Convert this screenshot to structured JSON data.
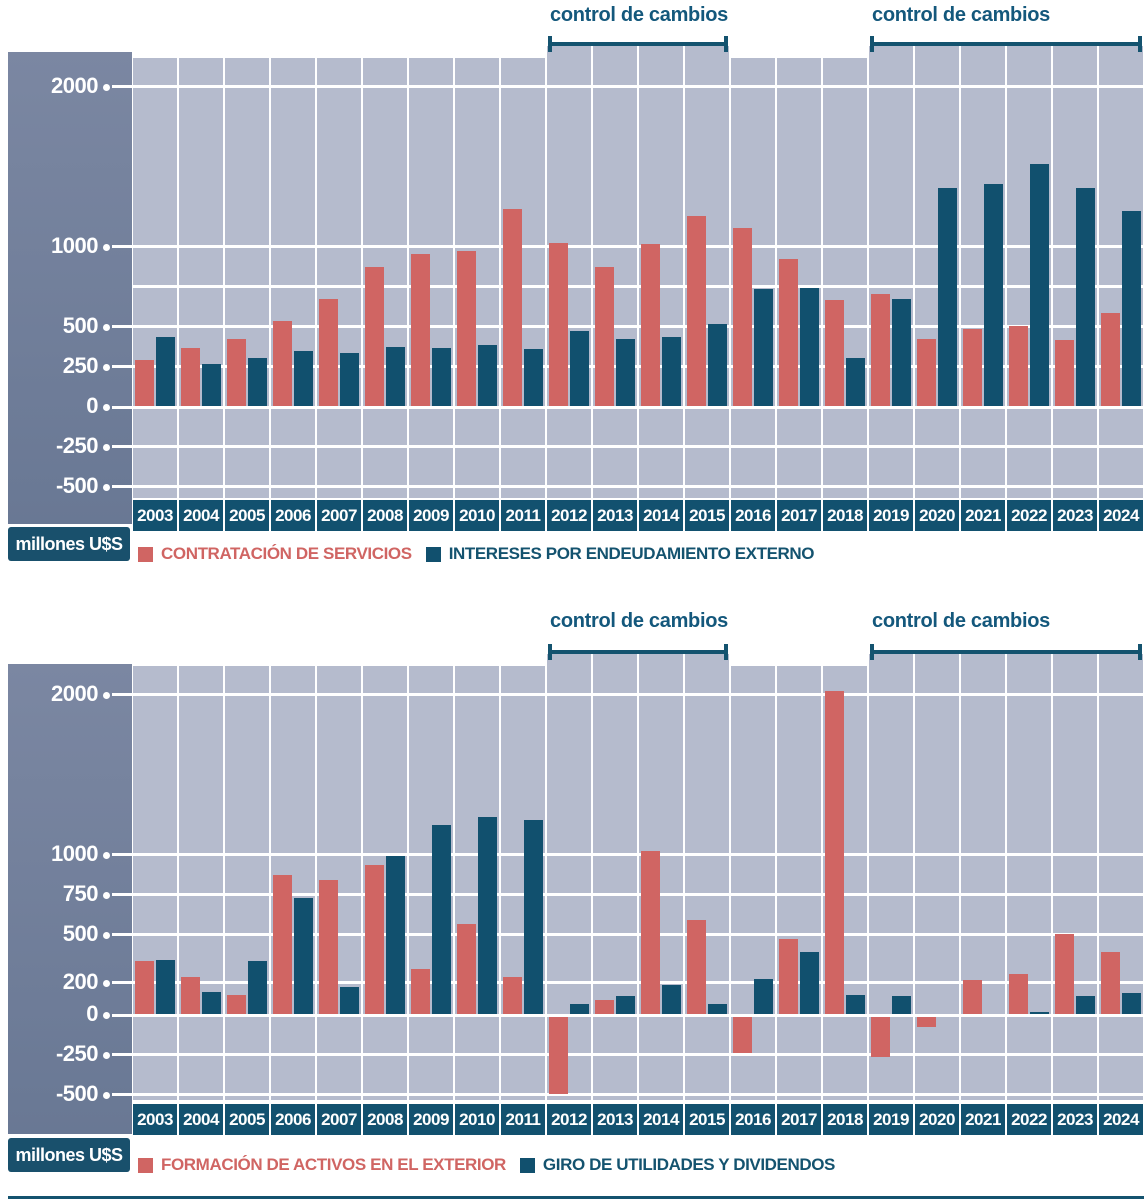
{
  "palette": {
    "series_red": "#d06563",
    "series_blue": "#11506e",
    "plot_column_bg": "#b5bbcd",
    "axis_panel_top": "#7b87a2",
    "axis_panel_bottom": "#697894",
    "year_band_bg": "#12516f",
    "control_text": "#14587c",
    "gridline": "#ffffff"
  },
  "footer": {
    "rule_color": "#14536f"
  },
  "chart_data": [
    {
      "type": "bar",
      "unit_label": "millones U$S",
      "categories": [
        "2003",
        "2004",
        "2005",
        "2006",
        "2007",
        "2008",
        "2009",
        "2010",
        "2011",
        "2012",
        "2013",
        "2014",
        "2015",
        "2016",
        "2017",
        "2018",
        "2019",
        "2020",
        "2021",
        "2022",
        "2023",
        "2024"
      ],
      "series": [
        {
          "key": "contratacion-de-servicios",
          "name": "CONTRATACIÓN DE SERVICIOS",
          "color": "#d06563",
          "values": [
            290,
            360,
            420,
            530,
            670,
            870,
            950,
            970,
            1230,
            1020,
            870,
            1010,
            1190,
            1110,
            920,
            660,
            700,
            420,
            480,
            500,
            415,
            580
          ]
        },
        {
          "key": "intereses-por-endeudamiento-externo",
          "name": "INTERESES POR ENDEUDAMIENTO EXTERNO",
          "color": "#11506e",
          "values": [
            430,
            260,
            300,
            345,
            330,
            370,
            360,
            380,
            355,
            470,
            420,
            430,
            510,
            730,
            740,
            300,
            670,
            1360,
            1390,
            1510,
            1360,
            1220
          ]
        }
      ],
      "y_gridlines": [
        2000,
        1000,
        750,
        500,
        250,
        0,
        -250,
        -500
      ],
      "y_tick_labels": [
        2000,
        1000,
        500,
        250,
        0,
        -250,
        -500
      ],
      "ylim": [
        -560,
        2200
      ],
      "annotations": [
        {
          "label": "control de cambios",
          "from": "2012",
          "to": "2015"
        },
        {
          "label": "control de cambios",
          "from": "2019",
          "to": "2024"
        }
      ],
      "legend_position": "bottom",
      "grid": true
    },
    {
      "type": "bar",
      "unit_label": "millones U$S",
      "categories": [
        "2003",
        "2004",
        "2005",
        "2006",
        "2007",
        "2008",
        "2009",
        "2010",
        "2011",
        "2012",
        "2013",
        "2014",
        "2015",
        "2016",
        "2017",
        "2018",
        "2019",
        "2020",
        "2021",
        "2022",
        "2023",
        "2024"
      ],
      "series": [
        {
          "key": "formacion-de-activos-en-el-exterior",
          "name": "FORMACIÓN DE ACTIVOS EN EL EXTERIOR",
          "color": "#d06563",
          "values": [
            330,
            230,
            120,
            870,
            840,
            930,
            280,
            560,
            230,
            -500,
            90,
            1020,
            590,
            -245,
            470,
            2020,
            -270,
            -80,
            210,
            250,
            500,
            390
          ]
        },
        {
          "key": "giro-de-utilidades-y-dividendos",
          "name": "GIRO DE UTILIDADES Y DIVIDENDOS",
          "color": "#11506e",
          "values": [
            340,
            140,
            330,
            725,
            170,
            990,
            1180,
            1230,
            1210,
            60,
            110,
            180,
            60,
            220,
            390,
            120,
            110,
            0,
            0,
            15,
            110,
            130
          ]
        }
      ],
      "y_gridlines": [
        2000,
        1000,
        750,
        500,
        200,
        0,
        -250,
        -500
      ],
      "y_tick_labels": [
        2000,
        1000,
        750,
        500,
        200,
        0,
        -250,
        -500
      ],
      "ylim": [
        -560,
        2200
      ],
      "annotations": [
        {
          "label": "control de cambios",
          "from": "2012",
          "to": "2015"
        },
        {
          "label": "control de cambios",
          "from": "2019",
          "to": "2024"
        }
      ],
      "legend_position": "bottom",
      "grid": true
    }
  ]
}
